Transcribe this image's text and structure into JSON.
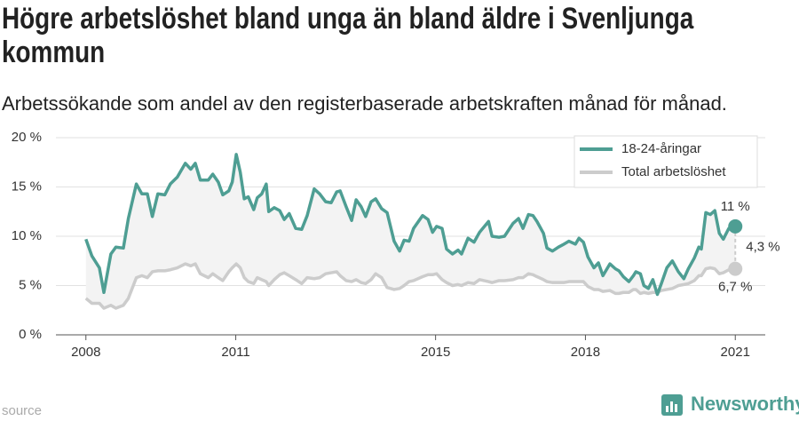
{
  "chart_data": {
    "type": "line",
    "title": "Högre arbetslöshet bland unga än bland äldre i Svenljunga kommun",
    "subtitle": "Arbetssökande som andel av den registerbaserade arbetskraften månad för månad.",
    "x": [
      2008,
      2008.12,
      2008.27,
      2008.36,
      2008.5,
      2008.6,
      2008.75,
      2008.85,
      2009.01,
      2009.12,
      2009.23,
      2009.33,
      2009.44,
      2009.58,
      2009.69,
      2009.83,
      2009.99,
      2010.1,
      2010.19,
      2010.29,
      2010.45,
      2010.54,
      2010.65,
      2010.74,
      2010.86,
      2010.93,
      2011.01,
      2011.09,
      2011.17,
      2011.25,
      2011.36,
      2011.43,
      2011.52,
      2011.61,
      2011.66,
      2011.77,
      2011.88,
      2011.97,
      2012.07,
      2012.2,
      2012.32,
      2012.43,
      2012.57,
      2012.68,
      2012.8,
      2012.91,
      2013.02,
      2013.09,
      2013.21,
      2013.32,
      2013.41,
      2013.51,
      2013.6,
      2013.71,
      2013.8,
      2013.92,
      2014.03,
      2014.17,
      2014.28,
      2014.37,
      2014.47,
      2014.56,
      2014.74,
      2014.85,
      2014.94,
      2015.02,
      2015.13,
      2015.22,
      2015.34,
      2015.45,
      2015.52,
      2015.65,
      2015.77,
      2015.88,
      2016.06,
      2016.13,
      2016.27,
      2016.38,
      2016.55,
      2016.66,
      2016.75,
      2016.86,
      2016.95,
      2017.03,
      2017.16,
      2017.23,
      2017.34,
      2017.46,
      2017.57,
      2017.67,
      2017.8,
      2017.87,
      2017.96,
      2018.05,
      2018.17,
      2018.26,
      2018.35,
      2018.49,
      2018.6,
      2018.67,
      2018.76,
      2018.87,
      2018.96,
      2019.01,
      2019.1,
      2019.17,
      2019.26,
      2019.35,
      2019.44,
      2019.52,
      2019.63,
      2019.74,
      2019.86,
      2019.97,
      2020.06,
      2020.18,
      2020.27,
      2020.32,
      2020.41,
      2020.5,
      2020.59,
      2020.68,
      2020.76,
      2020.87,
      2021
    ],
    "series": [
      {
        "name": "18-24-åringar",
        "color": "#4e9e93",
        "values": [
          9.7,
          8.0,
          6.8,
          4.3,
          8.2,
          8.9,
          8.8,
          11.8,
          15.3,
          14.3,
          14.3,
          12.0,
          14.3,
          14.2,
          15.3,
          16.0,
          17.4,
          16.8,
          17.4,
          15.7,
          15.7,
          16.3,
          15.5,
          14.2,
          14.6,
          15.5,
          18.3,
          16.5,
          13.8,
          14.0,
          12.7,
          13.9,
          14.3,
          15.3,
          12.5,
          12.9,
          12.6,
          11.7,
          12.3,
          10.8,
          10.7,
          12.1,
          14.8,
          14.3,
          13.5,
          13.4,
          14.5,
          14.6,
          13.0,
          11.6,
          13.7,
          13.0,
          12.0,
          13.5,
          13.8,
          12.8,
          12.4,
          9.5,
          8.5,
          9.6,
          9.5,
          10.8,
          12.1,
          11.7,
          10.4,
          11.0,
          10.8,
          8.7,
          8.2,
          8.6,
          8.2,
          9.8,
          9.4,
          10.4,
          11.5,
          10.0,
          9.9,
          10.0,
          11.3,
          11.8,
          10.8,
          12.2,
          12.1,
          11.5,
          10.3,
          8.8,
          8.5,
          8.9,
          9.2,
          9.5,
          9.2,
          9.8,
          9.4,
          7.9,
          6.8,
          7.3,
          6.0,
          7.2,
          6.7,
          6.5,
          5.9,
          5.4,
          6.0,
          6.4,
          6.2,
          5.0,
          4.7,
          5.6,
          4.1,
          5.2,
          6.8,
          7.5,
          6.4,
          5.7,
          6.7,
          7.8,
          8.9,
          8.7,
          12.4,
          12.2,
          12.6,
          10.3,
          9.7,
          10.8,
          11.0
        ]
      },
      {
        "name": "Total arbetslöshet",
        "color": "#cccccc",
        "values": [
          3.7,
          3.2,
          3.2,
          2.7,
          3.0,
          2.7,
          3.0,
          3.7,
          5.8,
          6.0,
          5.8,
          6.4,
          6.5,
          6.5,
          6.6,
          6.8,
          7.2,
          7.0,
          7.2,
          6.2,
          5.8,
          6.2,
          5.8,
          5.5,
          6.4,
          6.8,
          7.2,
          6.8,
          5.8,
          5.4,
          5.2,
          5.8,
          5.6,
          5.4,
          5.0,
          5.6,
          6.1,
          6.3,
          6.0,
          5.6,
          5.2,
          5.8,
          5.7,
          5.8,
          6.2,
          6.3,
          6.4,
          6.0,
          5.5,
          5.4,
          5.6,
          5.3,
          5.2,
          5.6,
          6.2,
          5.8,
          4.8,
          4.6,
          4.7,
          5.0,
          5.4,
          5.5,
          5.9,
          6.1,
          6.1,
          6.2,
          5.6,
          5.3,
          5.0,
          5.1,
          5.0,
          5.3,
          5.2,
          5.6,
          5.4,
          5.3,
          5.5,
          5.5,
          5.6,
          5.8,
          5.8,
          6.2,
          6.1,
          5.9,
          5.6,
          5.4,
          5.3,
          5.3,
          5.3,
          5.4,
          5.4,
          5.4,
          5.4,
          4.9,
          4.6,
          4.6,
          4.4,
          4.5,
          4.2,
          4.2,
          4.3,
          4.3,
          4.6,
          4.6,
          4.2,
          4.3,
          4.2,
          4.3,
          4.3,
          4.5,
          4.6,
          4.7,
          5.0,
          5.1,
          5.2,
          5.5,
          6.0,
          6.0,
          6.7,
          6.8,
          6.7,
          6.2,
          6.3,
          6.6,
          6.7
        ]
      }
    ],
    "annotations": [
      {
        "text": "11 %",
        "value": 11
      },
      {
        "text": "6,7 %",
        "value": 6.7
      },
      {
        "text": "4,3 %",
        "value": 4.3
      }
    ],
    "xlim": [
      2007.4,
      2021.6
    ],
    "xticks": [
      2008,
      2011,
      2015,
      2018,
      2021
    ],
    "ylim": [
      0,
      20
    ],
    "yticks": [
      {
        "value": 0,
        "label": "0 %"
      },
      {
        "value": 5,
        "label": "5 %"
      },
      {
        "value": 10,
        "label": "10 %"
      },
      {
        "value": 15,
        "label": "15 %"
      },
      {
        "value": 20,
        "label": "20 %"
      }
    ],
    "grid": true,
    "legend": "top-right",
    "source": "source",
    "brand": "Newsworthy"
  }
}
